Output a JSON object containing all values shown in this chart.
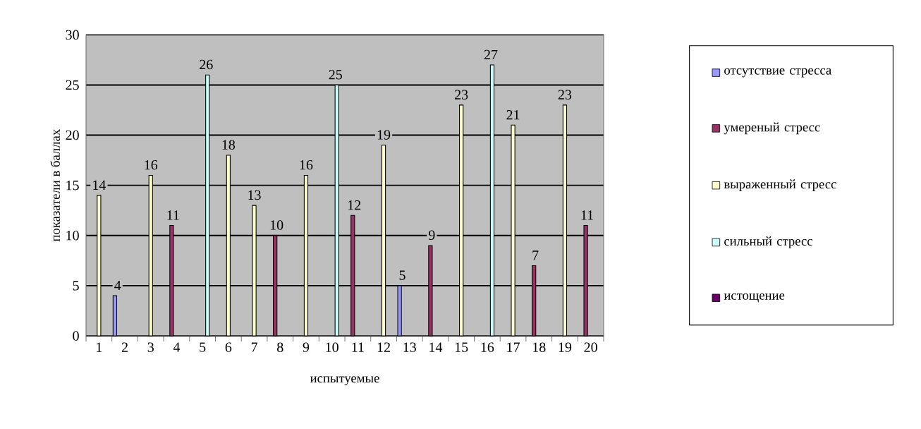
{
  "chart_data": {
    "type": "bar",
    "xlabel": "испытуемые",
    "ylabel": "показатели в баллах",
    "categories": [
      "1",
      "2",
      "3",
      "4",
      "5",
      "6",
      "7",
      "8",
      "9",
      "10",
      "11",
      "12",
      "13",
      "14",
      "15",
      "16",
      "17",
      "18",
      "19",
      "20"
    ],
    "series": [
      {
        "name": "отсутствие стресса",
        "color": "#9999ff",
        "values": [
          null,
          4,
          null,
          null,
          null,
          null,
          null,
          null,
          null,
          null,
          null,
          null,
          5,
          null,
          null,
          null,
          null,
          null,
          null,
          null
        ]
      },
      {
        "name": "умереный стресс",
        "color": "#993366",
        "values": [
          null,
          null,
          null,
          11,
          null,
          null,
          null,
          10,
          null,
          null,
          12,
          null,
          null,
          9,
          null,
          null,
          null,
          7,
          null,
          11
        ]
      },
      {
        "name": "выраженный стресс",
        "color": "#ffffcc",
        "values": [
          14,
          null,
          16,
          null,
          null,
          18,
          13,
          null,
          16,
          null,
          null,
          19,
          null,
          null,
          23,
          null,
          21,
          null,
          23,
          null
        ]
      },
      {
        "name": "сильный  стресс",
        "color": "#ccffff",
        "values": [
          null,
          null,
          null,
          null,
          26,
          null,
          null,
          null,
          null,
          25,
          null,
          null,
          null,
          null,
          null,
          27,
          null,
          null,
          null,
          null
        ]
      },
      {
        "name": "истощение",
        "color": "#660066",
        "values": [
          null,
          null,
          null,
          null,
          null,
          null,
          null,
          null,
          null,
          null,
          null,
          null,
          null,
          null,
          null,
          null,
          null,
          null,
          null,
          null
        ]
      }
    ],
    "ylim": [
      0,
      30
    ],
    "yticks": [
      0,
      5,
      10,
      15,
      20,
      25,
      30
    ],
    "grid": "y",
    "legend": "right",
    "data_labels": true
  }
}
